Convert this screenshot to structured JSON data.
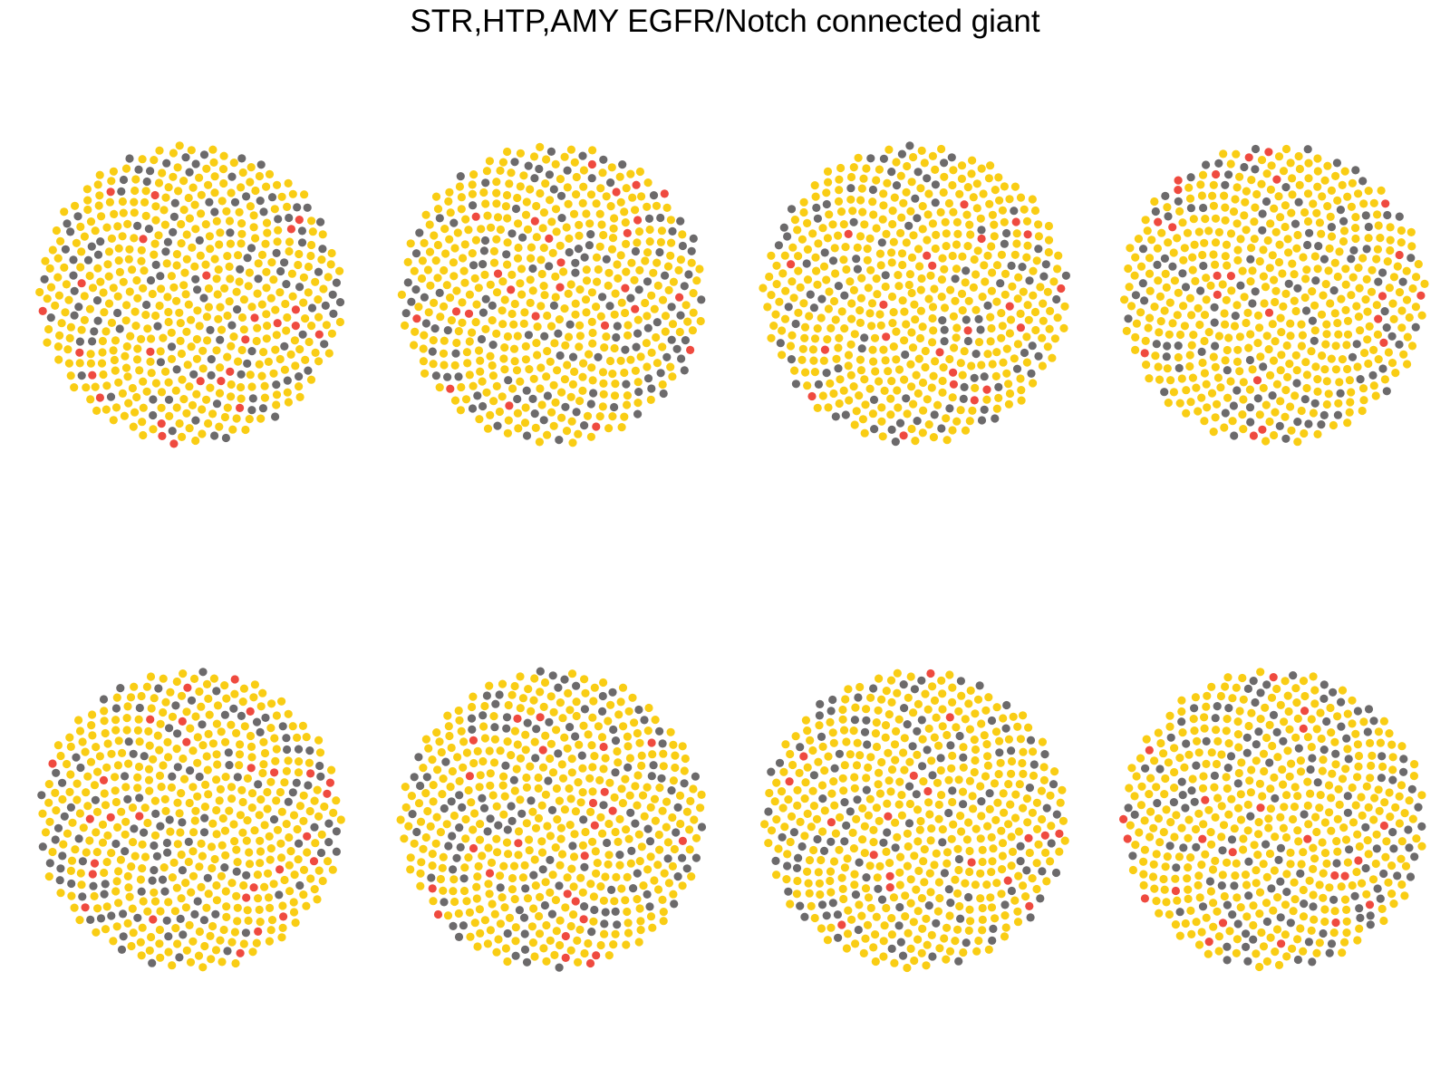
{
  "title": "STR,HTP,AMY EGFR/Notch connected giant",
  "colors": {
    "background": "#ffffff",
    "node_default": "#f9cd14",
    "node_gray": "#6c6a6b",
    "node_red": "#ef4a3f"
  },
  "panels": [
    {
      "id": 1,
      "seed": 11
    },
    {
      "id": 2,
      "seed": 23
    },
    {
      "id": 3,
      "seed": 37
    },
    {
      "id": 4,
      "seed": 41
    },
    {
      "id": 5,
      "seed": 53
    },
    {
      "id": 6,
      "seed": 67
    },
    {
      "id": 7,
      "seed": 79
    },
    {
      "id": 8,
      "seed": 97
    }
  ]
}
